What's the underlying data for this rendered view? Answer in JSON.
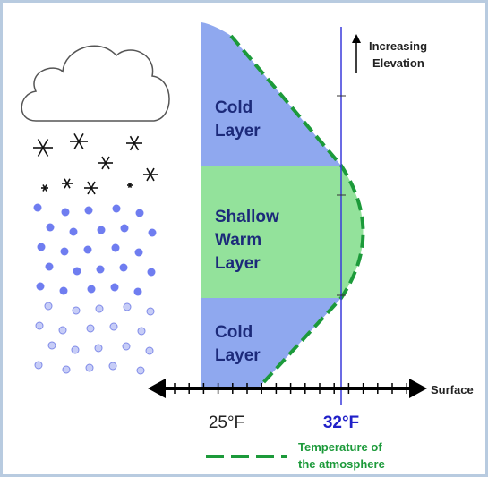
{
  "elevation_label": [
    "Increasing",
    "Elevation"
  ],
  "layers": [
    {
      "lines": [
        "Cold",
        "Layer"
      ]
    },
    {
      "lines": [
        "Shallow",
        "Warm",
        "Layer"
      ]
    },
    {
      "lines": [
        "Cold",
        "Layer"
      ]
    }
  ],
  "surface_label": "Surface",
  "axis_labels": [
    "25°F",
    "32°F"
  ],
  "legend": [
    "Temperature of",
    "the atmosphere"
  ]
}
